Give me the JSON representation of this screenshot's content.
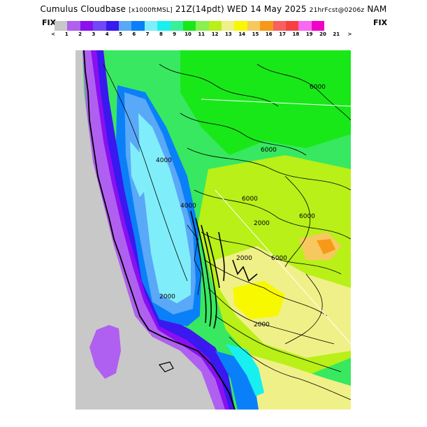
{
  "title": {
    "main": "Cumulus Cloudbase",
    "unit": "[x1000ftMSL]",
    "valid": "21Z(14pdt) WED 14 May 2025",
    "forecast": "21hrFcst@0206z",
    "model": "NAM"
  },
  "fix_left": "FIX",
  "fix_right": "FIX",
  "colorbar": {
    "colors": [
      "#c8c8c8",
      "#b060f0",
      "#8a10f0",
      "#7048f8",
      "#3a18f0",
      "#5aa8f8",
      "#0a80f8",
      "#80eefa",
      "#18f0f0",
      "#38f098",
      "#18e818",
      "#88f050",
      "#b8f018",
      "#f0f088",
      "#f8f800",
      "#f8c860",
      "#f89818",
      "#f86060",
      "#f84040",
      "#f868f0",
      "#f000c8"
    ],
    "tick_labels": [
      "<",
      "1",
      "2",
      "3",
      "4",
      "5",
      "6",
      "7",
      "8",
      "9",
      "10",
      "11",
      "12",
      "13",
      "14",
      "15",
      "16",
      "17",
      "18",
      "19",
      "20",
      "21",
      ">"
    ]
  },
  "map": {
    "contour_labels": [
      "6000",
      "6000",
      "2000",
      "6000",
      "2000",
      "6000",
      "6000",
      "2000",
      "2000",
      "4000",
      "4000"
    ]
  }
}
